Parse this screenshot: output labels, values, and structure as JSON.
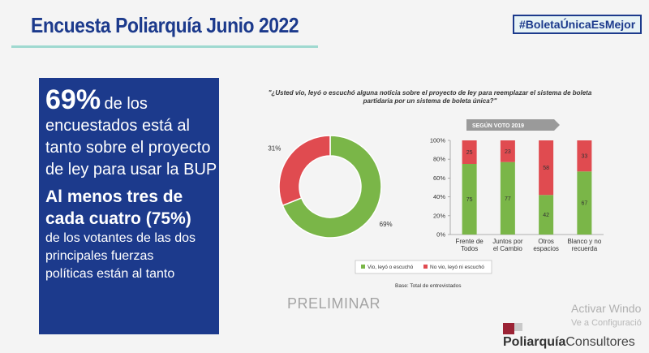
{
  "header": {
    "title": "Encuesta Poliarquía Junio 2022",
    "hashtag": "#BoletaÚnicaEsMejor"
  },
  "highlight": {
    "line1_big": "69%",
    "line1_rest": "de los",
    "line2": "encuestados está al",
    "line3": "tanto sobre el proyecto",
    "line4": "de ley para usar la BUP",
    "line5": "Al menos tres de",
    "line6": "cada cuatro (75%)",
    "line7": "de los votantes de las dos",
    "line8": "principales fuerzas",
    "line9": "políticas están al tanto"
  },
  "chart_data": [
    {
      "type": "pie",
      "donut": true,
      "slices": [
        {
          "label": "Vio, leyó o escuchó",
          "value": 69,
          "display": "69%",
          "color": "#7ab648"
        },
        {
          "label": "No vio, leyó ni escuchó",
          "value": 31,
          "display": "31%",
          "color": "#e04b50"
        }
      ]
    },
    {
      "type": "bar",
      "stacked": true,
      "header": "SEGÚN VOTO 2019",
      "categories": [
        [
          "Frente de",
          "Todos"
        ],
        [
          "Juntos por",
          "el Cambio"
        ],
        [
          "Otros",
          "espacios"
        ],
        [
          "Blanco y no",
          "recuerda"
        ]
      ],
      "series": [
        {
          "name": "Vio, leyó o escuchó",
          "color": "#7ab648",
          "values": [
            75,
            77,
            42,
            67
          ]
        },
        {
          "name": "No vio, leyó ni escuchó",
          "color": "#e04b50",
          "values": [
            25,
            23,
            58,
            33
          ]
        }
      ],
      "ylim": [
        0,
        100
      ],
      "yticks": [
        "0%",
        "20%",
        "40%",
        "60%",
        "80%",
        "100%"
      ]
    }
  ],
  "question": "\"¿Usted vio, leyó o escuchó alguna noticia sobre el proyecto de ley para reemplazar el sistema de boleta partidaria por un sistema de boleta única?\"",
  "legend": {
    "items": [
      "Vio, leyó o escuchó",
      "No vio, leyó ni escuchó"
    ]
  },
  "base_note": "Base: Total de entrevistados",
  "watermark": "PRELIMINAR",
  "windows_notice": {
    "line1": "Activar Windo",
    "line2": "Ve a Configuració"
  },
  "logo": {
    "part1": "Poliarquía",
    "part2": "Consultores",
    "color": "#9b2335"
  }
}
